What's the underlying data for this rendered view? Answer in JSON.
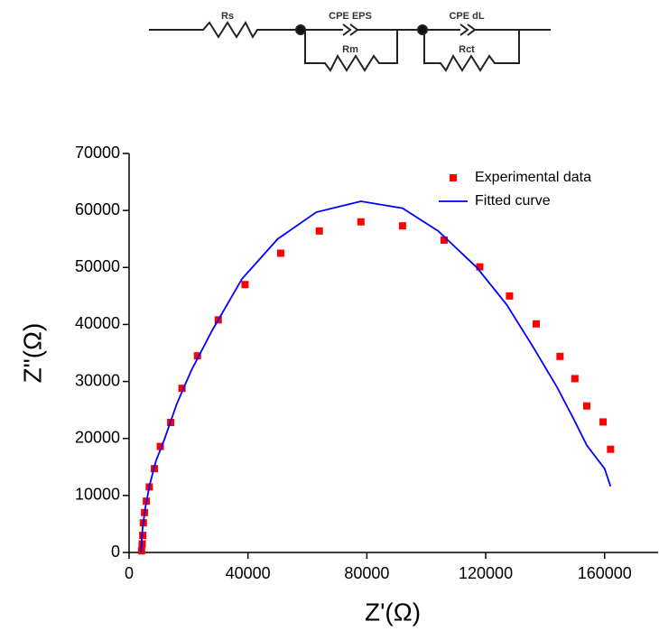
{
  "circuit": {
    "labels": [
      "Rs",
      "CPE EPS",
      "Rm",
      "CPE dL",
      "Rct"
    ]
  },
  "chart_data": {
    "type": "scatter",
    "x_label": "Z'(Ω)",
    "y_label": "Z\"(Ω)",
    "xlim": [
      0,
      178000
    ],
    "ylim": [
      0,
      70000
    ],
    "xticks": [
      0,
      40000,
      80000,
      120000,
      160000
    ],
    "yticks": [
      0,
      10000,
      20000,
      30000,
      40000,
      50000,
      60000,
      70000
    ],
    "legend": "upper-right",
    "series": [
      {
        "name": "Experimental data",
        "color": "#ff0000",
        "style": "markers",
        "x": [
          4200,
          4400,
          4600,
          4800,
          5200,
          5800,
          6800,
          8500,
          10500,
          14000,
          17800,
          23000,
          30000,
          39000,
          51000,
          64000,
          78000,
          92000,
          106000,
          118000,
          128000,
          137000,
          145000,
          150000,
          154000,
          159500,
          162000
        ],
        "values": [
          300,
          1500,
          3000,
          5200,
          7000,
          9000,
          11500,
          14700,
          18600,
          22800,
          28800,
          34500,
          40800,
          47000,
          52500,
          56400,
          58000,
          57300,
          54800,
          50100,
          45000,
          40100,
          34400,
          30500,
          25700,
          22900,
          18100
        ]
      },
      {
        "name": "Fitted curve",
        "color": "#0000ff",
        "style": "line",
        "x": [
          4000,
          4500,
          5500,
          7000,
          9000,
          12000,
          16000,
          21000,
          28000,
          38000,
          50000,
          63000,
          78000,
          92000,
          104000,
          117000,
          127000,
          136000,
          144000,
          150000,
          154000,
          160000,
          162000
        ],
        "values": [
          0,
          4000,
          8000,
          12000,
          16000,
          20000,
          26000,
          32000,
          39000,
          48000,
          55000,
          59700,
          61600,
          60400,
          56400,
          50000,
          43500,
          36000,
          29000,
          23000,
          18800,
          14700,
          11600
        ]
      }
    ]
  }
}
